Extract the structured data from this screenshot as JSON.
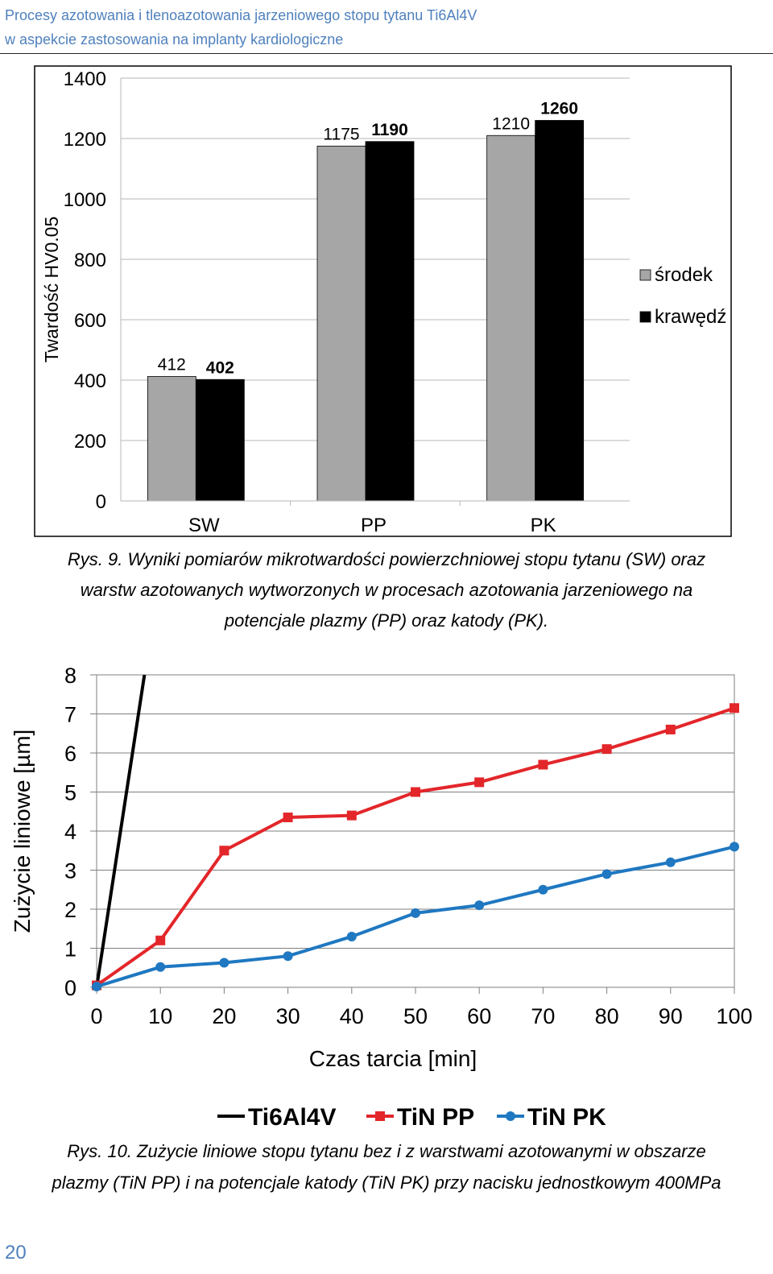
{
  "header": {
    "line1": "Procesy azotowania i tlenoazotowania jarzeniowego stopu tytanu Ti6Al4V",
    "line2": "w aspekcie zastosowania na implanty kardiologiczne"
  },
  "figure9_caption": {
    "line1": "Rys. 9. Wyniki pomiarów mikrotwardości powierzchniowej stopu tytanu (SW) oraz",
    "line2": "warstw azotowanych wytworzonych w procesach azotowania jarzeniowego na",
    "line3": "potencjale plazmy (PP) oraz katody (PK)."
  },
  "figure10_caption": {
    "line1": "Rys. 10. Zużycie liniowe stopu tytanu bez i z warstwami azotowanymi w obszarze",
    "line2": "plazmy (TiN PP) i na potencjale katody (TiN PK) przy nacisku jednostkowym 400MPa"
  },
  "page_number": "20",
  "chart_data": [
    {
      "type": "bar",
      "categories": [
        "SW",
        "PP",
        "PK"
      ],
      "series": [
        {
          "name": "środek",
          "values": [
            412,
            1175,
            1210
          ],
          "color": "#a6a6a6"
        },
        {
          "name": "krawędź",
          "values": [
            402,
            1190,
            1260
          ],
          "color": "#000000"
        }
      ],
      "ylabel": "Twardość HV0.05",
      "ylim": [
        0,
        1400
      ],
      "yticks": [
        0,
        200,
        400,
        600,
        800,
        1000,
        1200,
        1400
      ],
      "grid": true,
      "legend": "right"
    },
    {
      "type": "line",
      "x": [
        0,
        10,
        20,
        30,
        40,
        50,
        60,
        70,
        80,
        90,
        100
      ],
      "series": [
        {
          "name": "Ti6Al4V",
          "color": "#000000",
          "marker": "none",
          "points": [
            [
              0,
              0
            ],
            [
              7.5,
              8
            ]
          ]
        },
        {
          "name": "TiN PP",
          "color": "#e3262a",
          "marker": "square",
          "values": [
            0.05,
            1.2,
            3.5,
            4.35,
            4.4,
            5.0,
            5.25,
            5.7,
            6.1,
            6.6,
            7.15
          ]
        },
        {
          "name": "TiN PK",
          "color": "#1f78c1",
          "marker": "circle",
          "values": [
            0.02,
            0.52,
            0.63,
            0.8,
            1.3,
            1.9,
            2.1,
            2.5,
            2.9,
            3.2,
            3.6
          ]
        }
      ],
      "xlabel": "Czas tarcia [min]",
      "ylabel": "Zużycie liniowe [µm]",
      "xlim": [
        0,
        100
      ],
      "ylim": [
        0,
        8
      ],
      "xticks": [
        0,
        10,
        20,
        30,
        40,
        50,
        60,
        70,
        80,
        90,
        100
      ],
      "yticks": [
        0,
        1,
        2,
        3,
        4,
        5,
        6,
        7,
        8
      ],
      "grid": true,
      "legend": "bottom"
    }
  ]
}
